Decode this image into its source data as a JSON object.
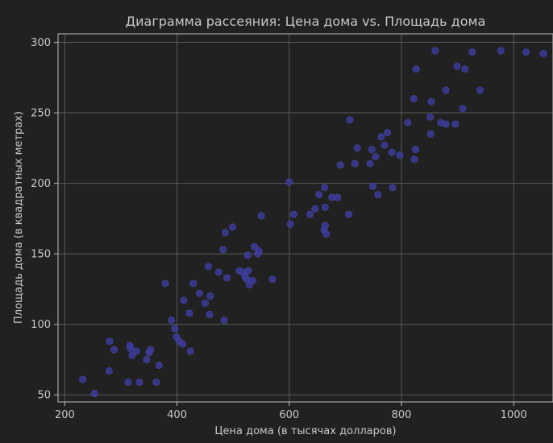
{
  "chart_data": {
    "type": "scatter",
    "title": "Диаграмма рассеяния: Цена дома vs. Площадь дома",
    "xlabel": "Цена дома (в тысячах долларов)",
    "ylabel": "Площадь дома (в квадратных метрах)",
    "xlim": [
      188,
      1070
    ],
    "ylim": [
      45,
      306
    ],
    "xticks": [
      200,
      400,
      600,
      800,
      1000
    ],
    "yticks": [
      50,
      100,
      150,
      200,
      250,
      300
    ],
    "grid": true,
    "marker_color": "#3b3b9a",
    "background": "#212121",
    "points": [
      [
        232,
        61
      ],
      [
        253,
        51
      ],
      [
        279,
        67
      ],
      [
        280,
        88
      ],
      [
        288,
        82
      ],
      [
        313,
        59
      ],
      [
        316,
        85
      ],
      [
        317,
        83
      ],
      [
        320,
        78
      ],
      [
        328,
        81
      ],
      [
        333,
        59
      ],
      [
        346,
        75
      ],
      [
        350,
        80
      ],
      [
        353,
        82
      ],
      [
        363,
        59
      ],
      [
        368,
        71
      ],
      [
        379,
        129
      ],
      [
        390,
        103
      ],
      [
        396,
        97
      ],
      [
        399,
        91
      ],
      [
        404,
        88
      ],
      [
        410,
        86
      ],
      [
        412,
        117
      ],
      [
        422,
        108
      ],
      [
        424,
        81
      ],
      [
        429,
        129
      ],
      [
        440,
        122
      ],
      [
        450,
        115
      ],
      [
        456,
        141
      ],
      [
        458,
        107
      ],
      [
        459,
        120
      ],
      [
        474,
        137
      ],
      [
        482,
        153
      ],
      [
        484,
        103
      ],
      [
        486,
        165
      ],
      [
        489,
        133
      ],
      [
        499,
        169
      ],
      [
        511,
        138
      ],
      [
        518,
        137
      ],
      [
        521,
        134
      ],
      [
        524,
        132
      ],
      [
        526,
        149
      ],
      [
        527,
        138
      ],
      [
        529,
        128
      ],
      [
        535,
        131
      ],
      [
        538,
        155
      ],
      [
        544,
        150
      ],
      [
        546,
        152
      ],
      [
        550,
        177
      ],
      [
        570,
        132
      ],
      [
        600,
        201
      ],
      [
        602,
        171
      ],
      [
        608,
        178
      ],
      [
        637,
        178
      ],
      [
        646,
        182
      ],
      [
        653,
        192
      ],
      [
        662,
        167
      ],
      [
        663,
        197
      ],
      [
        664,
        183
      ],
      [
        664,
        170
      ],
      [
        666,
        164
      ],
      [
        676,
        190
      ],
      [
        686,
        190
      ],
      [
        691,
        213
      ],
      [
        706,
        178
      ],
      [
        708,
        245
      ],
      [
        717,
        214
      ],
      [
        721,
        225
      ],
      [
        744,
        214
      ],
      [
        747,
        224
      ],
      [
        749,
        198
      ],
      [
        754,
        219
      ],
      [
        758,
        192
      ],
      [
        764,
        233
      ],
      [
        770,
        227
      ],
      [
        775,
        236
      ],
      [
        784,
        197
      ],
      [
        783,
        222
      ],
      [
        797,
        220
      ],
      [
        811,
        243
      ],
      [
        822,
        260
      ],
      [
        823,
        217
      ],
      [
        825,
        224
      ],
      [
        826,
        281
      ],
      [
        851,
        247
      ],
      [
        852,
        235
      ],
      [
        853,
        258
      ],
      [
        860,
        294
      ],
      [
        870,
        243
      ],
      [
        879,
        242
      ],
      [
        879,
        266
      ],
      [
        896,
        242
      ],
      [
        899,
        283
      ],
      [
        909,
        253
      ],
      [
        913,
        281
      ],
      [
        926,
        293
      ],
      [
        940,
        266
      ],
      [
        977,
        294
      ],
      [
        1022,
        293
      ],
      [
        1053,
        292
      ]
    ]
  }
}
